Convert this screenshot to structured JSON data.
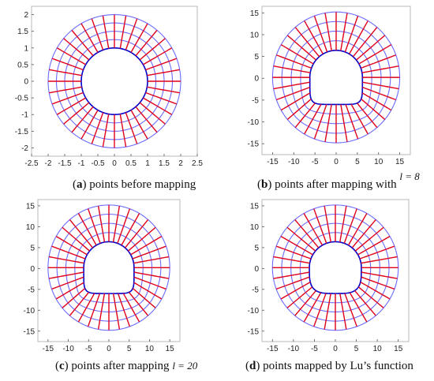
{
  "colors": {
    "radial": "#e0001a",
    "circle": "#6b6bff",
    "boundary": "#0000cc",
    "frame": "#b8b8b8"
  },
  "panels": [
    {
      "id": "a",
      "shape": "circle",
      "x_ticks": [
        "-2.5",
        "-2",
        "-1.5",
        "-1",
        "-0.5",
        "0",
        "0.5",
        "1",
        "1.5",
        "2",
        "2.5"
      ],
      "y_ticks": [
        "2",
        "1.5",
        "1",
        "0.5",
        "0",
        "-0.5",
        "-1",
        "-1.5",
        "-2"
      ],
      "x_range": [
        -2.5,
        2.5
      ],
      "y_range": [
        -2.25,
        2.25
      ],
      "caption": {
        "letter": "a",
        "text": " points before mapping",
        "param": ""
      }
    },
    {
      "id": "b",
      "shape": "tunnel",
      "x_ticks": [
        "-15",
        "-10",
        "-5",
        "0",
        "5",
        "10",
        "15"
      ],
      "y_ticks": [
        "15",
        "10",
        "5",
        "0",
        "-5",
        "-10",
        "-15"
      ],
      "x_range": [
        -17.5,
        17.5
      ],
      "y_range": [
        -17.5,
        16.5
      ],
      "caption": {
        "letter": "b",
        "text": " points after mapping with",
        "param": "l = 8"
      }
    },
    {
      "id": "c",
      "shape": "tunnel",
      "x_ticks": [
        "-15",
        "-10",
        "-5",
        "0",
        "5",
        "10",
        "15"
      ],
      "y_ticks": [
        "15",
        "10",
        "5",
        "0",
        "-5",
        "-10",
        "-15"
      ],
      "x_range": [
        -17.5,
        17.5
      ],
      "y_range": [
        -17.5,
        16.5
      ],
      "caption": {
        "letter": "c",
        "text": " points after mapping",
        "param": "l = 20"
      }
    },
    {
      "id": "d",
      "shape": "tunnel-smooth",
      "x_ticks": [
        "-15",
        "-10",
        "-5",
        "0",
        "5",
        "10",
        "15"
      ],
      "y_ticks": [
        "15",
        "10",
        "5",
        "0",
        "-5",
        "-10",
        "-15"
      ],
      "x_range": [
        -17.5,
        17.5
      ],
      "y_range": [
        -17.5,
        16.5
      ],
      "caption": {
        "letter": "d",
        "text": " points mapped by Lu’s function",
        "param": ""
      }
    }
  ]
}
